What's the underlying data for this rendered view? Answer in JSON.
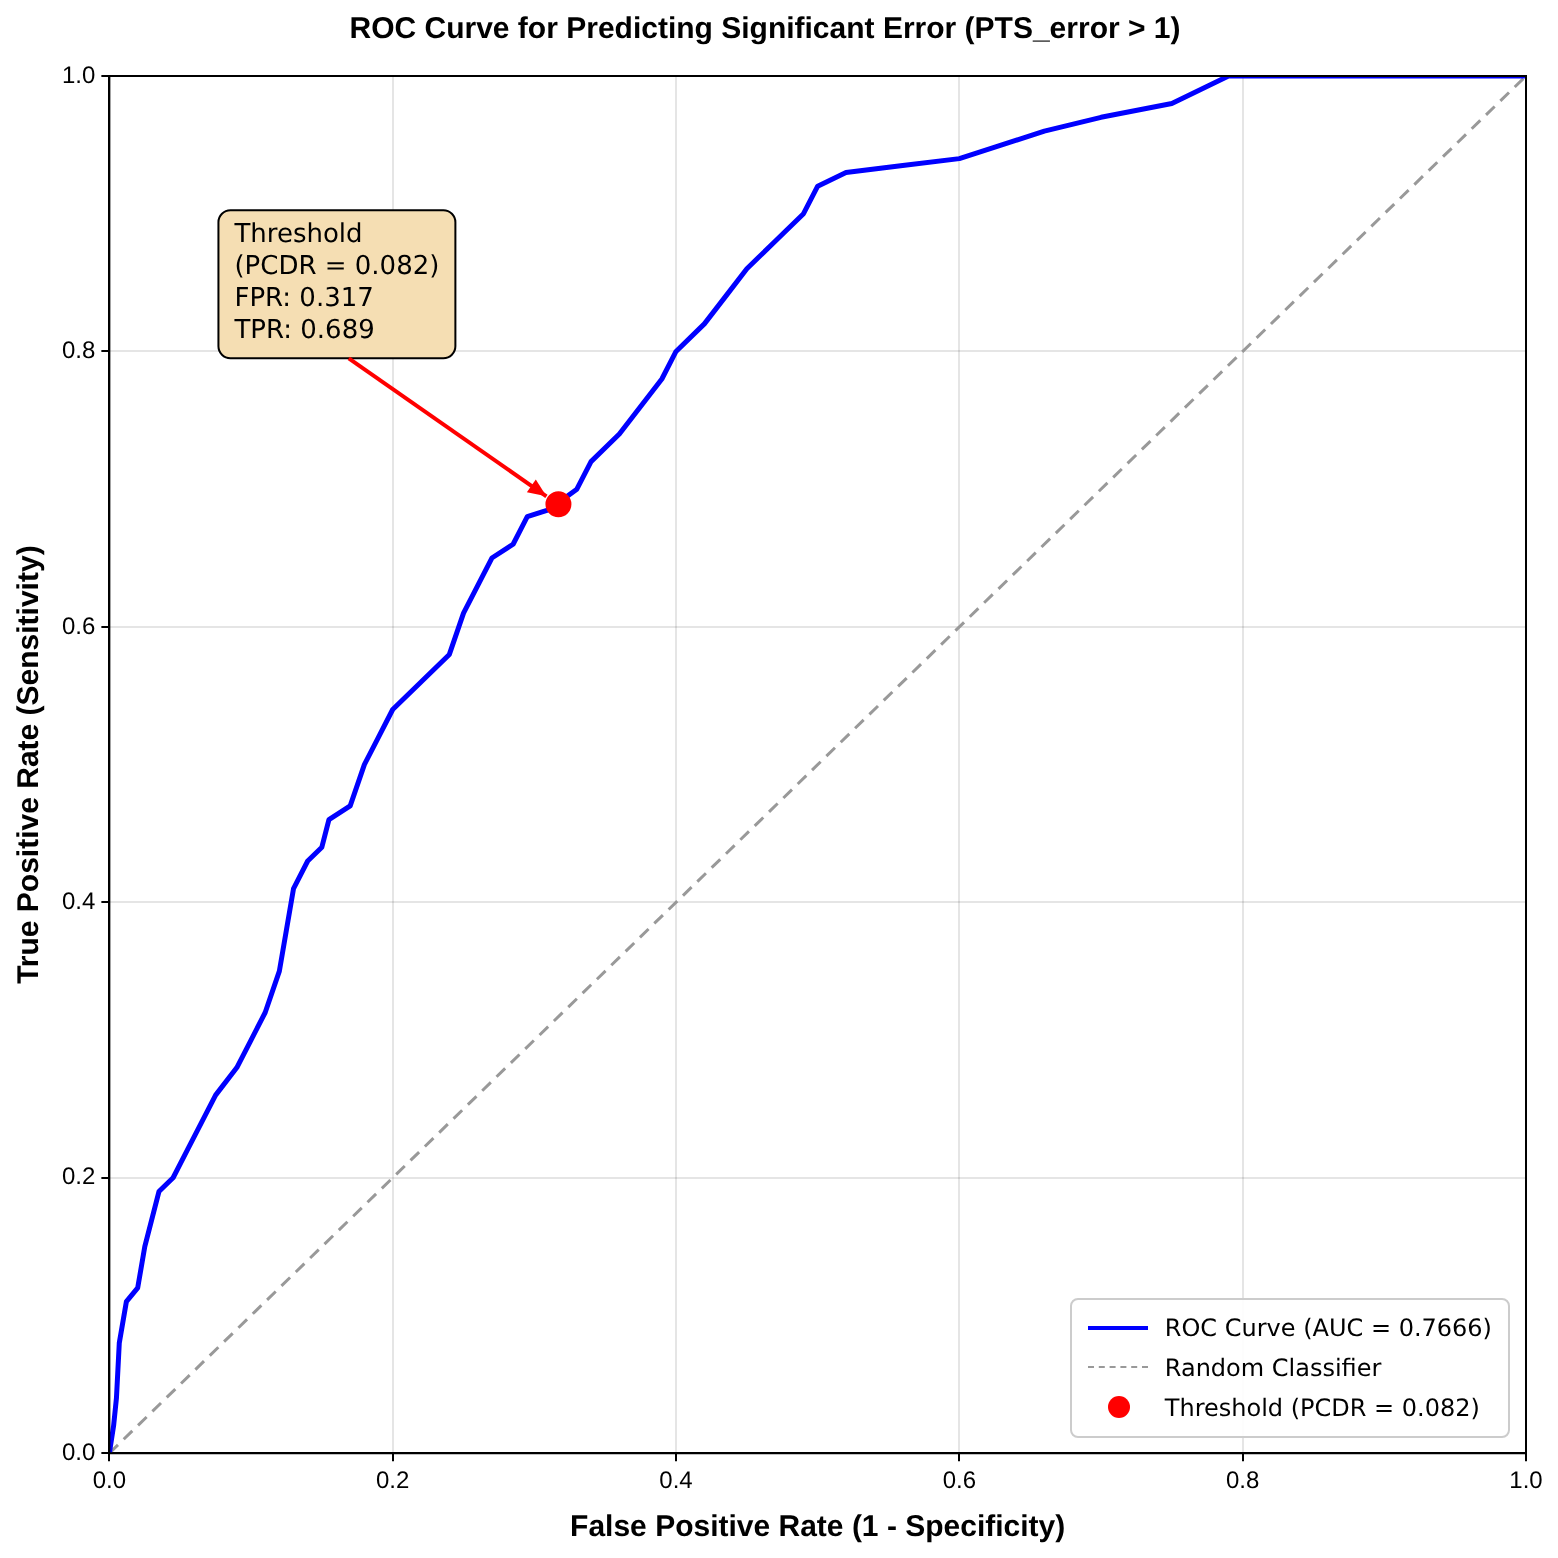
{
  "chart_data": {
    "type": "line",
    "title": "ROC Curve for Predicting Significant Error (PTS_error > 1)",
    "xlabel": "False Positive Rate (1 - Specificity)",
    "ylabel": "True Positive Rate (Sensitivity)",
    "xlim": [
      0,
      1
    ],
    "ylim": [
      0,
      1
    ],
    "xticks": [
      {
        "value": 0,
        "label": "0.0"
      },
      0.2,
      0.4,
      0.6,
      0.8,
      {
        "value": 1,
        "label": "1.0"
      }
    ],
    "yticks": [
      {
        "value": 0,
        "label": "0.0"
      },
      0.2,
      0.4,
      0.6,
      0.8,
      {
        "value": 1,
        "label": "1.0"
      }
    ],
    "grid": true,
    "legend": "bottom right",
    "series": [
      {
        "name": "ROC Curve (AUC = 0.7666)",
        "type": "line",
        "color": "#0000ff",
        "line_style": "solid",
        "x": [
          0,
          0.003,
          0.005,
          0.007,
          0.012,
          0.02,
          0.025,
          0.03,
          0.035,
          0.045,
          0.055,
          0.065,
          0.075,
          0.09,
          0.1,
          0.11,
          0.12,
          0.125,
          0.13,
          0.14,
          0.15,
          0.155,
          0.17,
          0.18,
          0.19,
          0.2,
          0.22,
          0.24,
          0.25,
          0.26,
          0.27,
          0.285,
          0.295,
          0.31,
          0.33,
          0.34,
          0.36,
          0.375,
          0.39,
          0.4,
          0.42,
          0.435,
          0.45,
          0.47,
          0.49,
          0.5,
          0.52,
          0.56,
          0.6,
          0.63,
          0.66,
          0.7,
          0.75,
          0.77,
          0.79,
          1
        ],
        "values": [
          0,
          0.02,
          0.04,
          0.08,
          0.11,
          0.12,
          0.15,
          0.17,
          0.19,
          0.2,
          0.22,
          0.24,
          0.26,
          0.28,
          0.3,
          0.32,
          0.35,
          0.38,
          0.41,
          0.43,
          0.44,
          0.46,
          0.47,
          0.5,
          0.52,
          0.54,
          0.56,
          0.58,
          0.61,
          0.63,
          0.65,
          0.66,
          0.68,
          0.685,
          0.7,
          0.72,
          0.74,
          0.76,
          0.78,
          0.8,
          0.82,
          0.84,
          0.86,
          0.88,
          0.9,
          0.92,
          0.93,
          0.935,
          0.94,
          0.95,
          0.96,
          0.97,
          0.98,
          0.99,
          1,
          1
        ]
      },
      {
        "name": "Random Classifier",
        "type": "line",
        "color": "#999999",
        "line_style": "dashed",
        "x": [
          0,
          1
        ],
        "values": [
          0,
          1
        ]
      },
      {
        "name": "Threshold (PCDR = 0.082)",
        "type": "scatter",
        "color": "#ff0000",
        "marker": "circle",
        "x": [
          0.317
        ],
        "values": [
          0.689
        ]
      }
    ],
    "annotations": [
      {
        "text": "Threshold\n(PCDR = 0.082)\nFPR: 0.317\nTPR: 0.689",
        "x": 0.317,
        "y": 0.689
      }
    ]
  }
}
